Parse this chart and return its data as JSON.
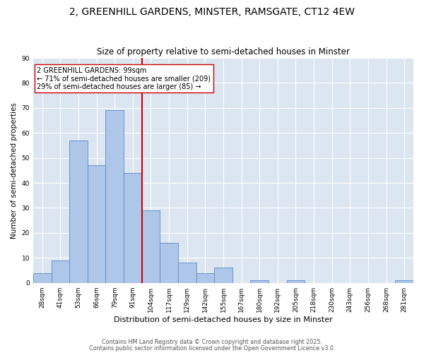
{
  "title": "2, GREENHILL GARDENS, MINSTER, RAMSGATE, CT12 4EW",
  "subtitle": "Size of property relative to semi-detached houses in Minster",
  "xlabel": "Distribution of semi-detached houses by size in Minster",
  "ylabel": "Number of semi-detached properties",
  "categories": [
    "28sqm",
    "41sqm",
    "53sqm",
    "66sqm",
    "79sqm",
    "91sqm",
    "104sqm",
    "117sqm",
    "129sqm",
    "142sqm",
    "155sqm",
    "167sqm",
    "180sqm",
    "192sqm",
    "205sqm",
    "218sqm",
    "230sqm",
    "243sqm",
    "256sqm",
    "268sqm",
    "281sqm"
  ],
  "values": [
    4,
    9,
    57,
    47,
    69,
    44,
    29,
    16,
    8,
    4,
    6,
    0,
    1,
    0,
    1,
    0,
    0,
    0,
    0,
    0,
    1
  ],
  "bar_color": "#aec6e8",
  "bar_edge_color": "#5b8cc8",
  "background_color": "#dce6f1",
  "grid_color": "#ffffff",
  "vline_color": "#cc0000",
  "annotation_line1": "2 GREENHILL GARDENS: 99sqm",
  "annotation_line2": "← 71% of semi-detached houses are smaller (209)",
  "annotation_line3": "29% of semi-detached houses are larger (85) →",
  "annotation_box_color": "#ffffff",
  "annotation_box_edge": "#cc0000",
  "ylim": [
    0,
    90
  ],
  "yticks": [
    0,
    10,
    20,
    30,
    40,
    50,
    60,
    70,
    80,
    90
  ],
  "footer1": "Contains HM Land Registry data © Crown copyright and database right 2025.",
  "footer2": "Contains public sector information licensed under the Open Government Licence v3.0.",
  "title_fontsize": 10,
  "subtitle_fontsize": 8.5,
  "xlabel_fontsize": 8,
  "ylabel_fontsize": 7.5,
  "tick_fontsize": 6.5,
  "annotation_fontsize": 7,
  "footer_fontsize": 5.8
}
